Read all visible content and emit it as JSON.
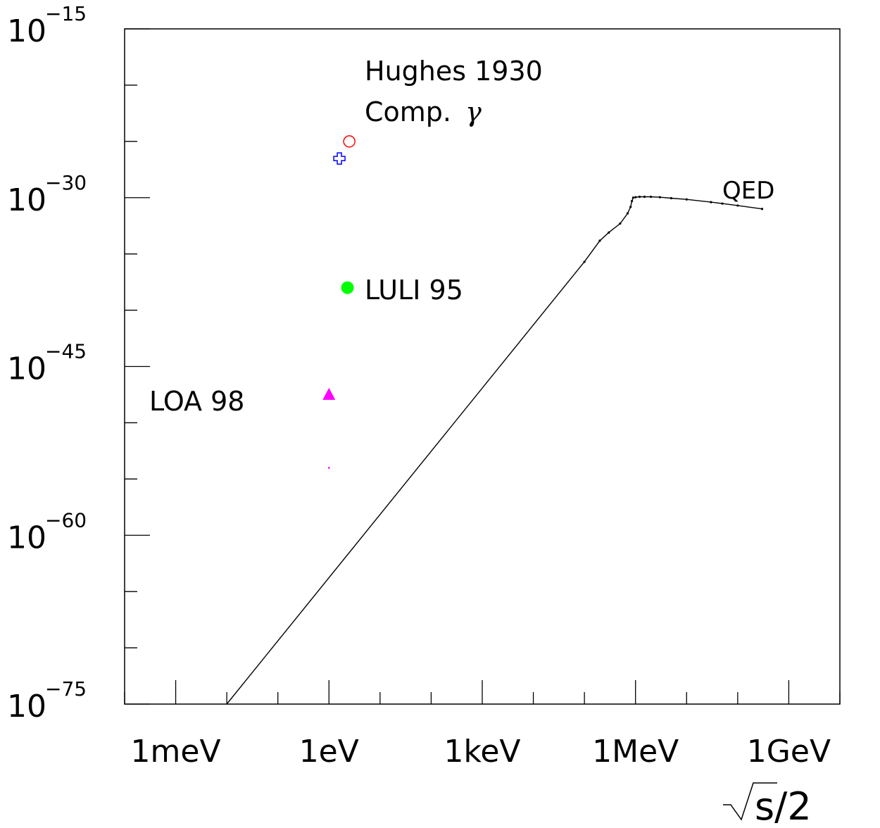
{
  "chart_data": {
    "type": "line",
    "title": "",
    "xlabel": "√s/2",
    "ylabel": "",
    "x_scale": "log",
    "y_scale": "log",
    "xlim_eV": [
      0.0001,
      10000000000
    ],
    "ylim": [
      1e-75,
      1e-15
    ],
    "grid": false,
    "x_ticks": [
      {
        "value": 0.001,
        "label": "1meV"
      },
      {
        "value": 1,
        "label": "1eV"
      },
      {
        "value": 1000,
        "label": "1keV"
      },
      {
        "value": 1000000,
        "label": "1MeV"
      },
      {
        "value": 1000000000,
        "label": "1GeV"
      }
    ],
    "y_ticks": [
      {
        "value": 1e-15,
        "mantissa": "10",
        "exponent": "−15"
      },
      {
        "value": 1e-30,
        "mantissa": "10",
        "exponent": "−30"
      },
      {
        "value": 1e-45,
        "mantissa": "10",
        "exponent": "−45"
      },
      {
        "value": 1e-60,
        "mantissa": "10",
        "exponent": "−60"
      },
      {
        "value": 1e-75,
        "mantissa": "10",
        "exponent": "−75"
      }
    ],
    "series": [
      {
        "name": "QED",
        "color": "#000000",
        "x": [
          0.01,
          100000,
          200000,
          300000,
          500000,
          700000,
          800000,
          850000,
          900000,
          1000000,
          1200000,
          1500000,
          2000000,
          3000000,
          5000000,
          10000000,
          30000000,
          50000000,
          100000000,
          300000000
        ],
        "y": [
          1e-75,
          2e-36,
          1.5e-34,
          8e-34,
          5e-33,
          4e-32,
          1.5e-31,
          5e-31,
          1e-30,
          1.1e-30,
          1.2e-30,
          1.2e-30,
          1.2e-30,
          1.1e-30,
          9e-31,
          7e-31,
          4e-31,
          3e-31,
          2e-31,
          1e-31
        ]
      }
    ],
    "points": [
      {
        "name": "Hughes 1930",
        "x": 2.5,
        "y": 1e-25,
        "marker": "open-circle",
        "color": "#ff0000"
      },
      {
        "name": "Comp. γ",
        "x": 1.6,
        "y": 3e-27,
        "marker": "open-cross",
        "color": "#0000ff"
      },
      {
        "name": "LULI 95",
        "x": 2.3,
        "y": 1e-38,
        "marker": "filled-circle",
        "color": "#00ff00"
      },
      {
        "name": "LOA 98",
        "x": 1.0,
        "y": 3e-48,
        "marker": "filled-triangle",
        "color": "#ff00ff"
      },
      {
        "name": "",
        "x": 1.0,
        "y": 1e-54,
        "marker": "dot",
        "color": "#ff00ff"
      }
    ],
    "labels": {
      "hughes": "Hughes 1930",
      "comp_prefix": "Comp. ",
      "comp_symbol": "γ",
      "luli": "LULI 95",
      "loa": "LOA 98",
      "qed": "QED"
    }
  }
}
